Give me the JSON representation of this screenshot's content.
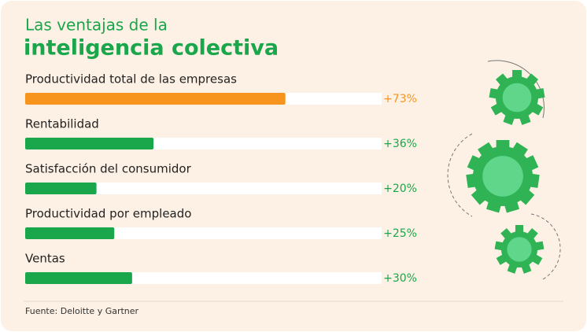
{
  "chart_data": {
    "type": "bar",
    "orientation": "horizontal",
    "title": "Las ventajas de la",
    "subtitle": "inteligencia colectiva",
    "categories": [
      "Productividad total de las empresas",
      "Rentabilidad",
      "Satisfacción del consumidor",
      "Productividad por empleado",
      "Ventas"
    ],
    "values": [
      73,
      36,
      20,
      25,
      30
    ],
    "value_labels": [
      "+73%",
      "+36%",
      "+20%",
      "+25%",
      "+30%"
    ],
    "colors": [
      "#f7941d",
      "#1aa64a",
      "#1aa64a",
      "#1aa64a",
      "#1aa64a"
    ],
    "xlim": [
      0,
      100
    ],
    "source": "Fuente: Deloitte y Gartner"
  }
}
